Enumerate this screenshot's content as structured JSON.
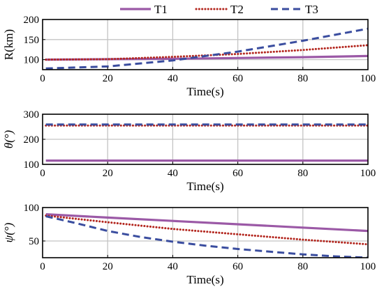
{
  "legend": {
    "placement": "top-center",
    "entries": [
      {
        "label": "T1",
        "color": "#9b59a6",
        "style": "solid"
      },
      {
        "label": "T2",
        "color": "#b3261e",
        "style": "dotted"
      },
      {
        "label": "T3",
        "color": "#3a4d9f",
        "style": "dashed"
      }
    ]
  },
  "chart_data": [
    {
      "type": "line",
      "xlabel": "Time(s)",
      "ylabel": "R(km)",
      "xlim": [
        0,
        100
      ],
      "ylim": [
        75,
        200
      ],
      "xticks": [
        0,
        20,
        40,
        60,
        80,
        100
      ],
      "yticks": [
        100,
        150,
        200
      ],
      "grid": true,
      "series": [
        {
          "name": "T1",
          "x": [
            1,
            20,
            40,
            60,
            80,
            100
          ],
          "y": [
            100,
            101,
            102,
            104,
            106,
            109
          ]
        },
        {
          "name": "T2",
          "x": [
            1,
            20,
            40,
            60,
            80,
            100
          ],
          "y": [
            100,
            101,
            107,
            114,
            124,
            136
          ]
        },
        {
          "name": "T3",
          "x": [
            1,
            20,
            40,
            60,
            80,
            100
          ],
          "y": [
            78,
            83,
            98,
            120,
            147,
            177
          ]
        }
      ]
    },
    {
      "type": "line",
      "xlabel": "Time(s)",
      "ylabel": "θ(°)",
      "xlim": [
        0,
        100
      ],
      "ylim": [
        100,
        300
      ],
      "xticks": [
        0,
        20,
        40,
        60,
        80,
        100
      ],
      "yticks": [
        100,
        200,
        300
      ],
      "grid": true,
      "series": [
        {
          "name": "T1",
          "x": [
            1,
            100
          ],
          "y": [
            115,
            115
          ]
        },
        {
          "name": "T2",
          "x": [
            1,
            100
          ],
          "y": [
            255,
            255
          ]
        },
        {
          "name": "T3",
          "x": [
            1,
            100
          ],
          "y": [
            259,
            259
          ]
        }
      ]
    },
    {
      "type": "line",
      "xlabel": "Time(s)",
      "ylabel": "ψ(°)",
      "xlim": [
        0,
        100
      ],
      "ylim": [
        25,
        100
      ],
      "xticks": [
        0,
        20,
        40,
        60,
        80,
        100
      ],
      "yticks": [
        50,
        100
      ],
      "grid": true,
      "series": [
        {
          "name": "T1",
          "x": [
            1,
            20,
            40,
            60,
            80,
            100
          ],
          "y": [
            90,
            85,
            80,
            75,
            70,
            65
          ]
        },
        {
          "name": "T2",
          "x": [
            1,
            20,
            40,
            60,
            80,
            100
          ],
          "y": [
            88,
            78,
            68,
            60,
            52,
            45
          ]
        },
        {
          "name": "T3",
          "x": [
            1,
            10,
            20,
            30,
            40,
            50,
            60,
            70,
            80,
            90,
            100
          ],
          "y": [
            87,
            77,
            65,
            56,
            49,
            43,
            38,
            34,
            30,
            27,
            25
          ]
        }
      ]
    }
  ]
}
